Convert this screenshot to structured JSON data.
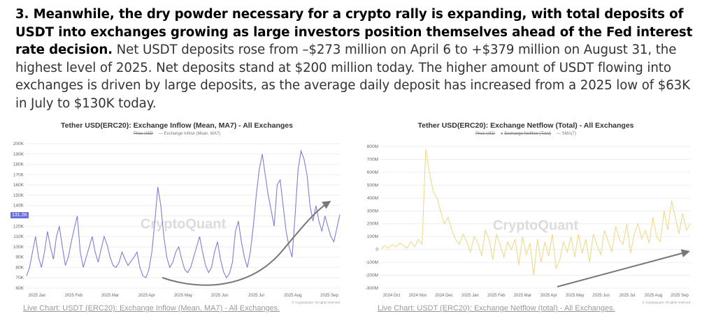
{
  "paragraph": {
    "bold": "3. Meanwhile, the dry powder necessary for a crypto rally is expanding, with total deposits of USDT into exchanges growing as large investors position themselves ahead of the Fed interest rate decision.",
    "body": " Net USDT deposits rose from –$273 million on April 6 to +$379 million on August 31, the highest level of 2025. Net deposits stand at $200 million today. The higher amount of USDT flowing into exchanges is driven by large deposits, as the average daily deposit has increased from a 2025 low of $63K in July to $130K today."
  },
  "chart_left": {
    "title": "Tether USD(ERC20): Exchange Inflow (Mean, MA7) - All Exchanges",
    "legend": [
      "Price USD",
      "Exchange Inflow (Mean, MA7)"
    ],
    "watermark": "CryptoQuant",
    "badge": "131.2K",
    "copyright": "© CryptoQuant. All rights reserved",
    "link": "Live Chart: USDT (ERC20): Exchange Inflow (Mean, MA7) - All Exchanges.",
    "line_color": "#7b7fd6"
  },
  "chart_right": {
    "title": "Tether USD(ERC20): Exchange Netflow (Total) - All Exchanges",
    "legend": [
      "Price USD",
      "Exchange Netflow (Total)",
      "SMA(7)"
    ],
    "watermark": "CryptoQuant",
    "copyright": "© CryptoQuant. All rights reserved",
    "link": "Live Chart: USDT (ERC20): Exchange Netflow (total) - All Exchanges.",
    "line_color": "#f1d98a"
  },
  "chart_data": [
    {
      "type": "line",
      "title": "Tether USD(ERC20): Exchange Inflow (Mean, MA7) - All Exchanges",
      "ylim": [
        60000,
        200000
      ],
      "y_ticks": [
        "200K",
        "190K",
        "180K",
        "170K",
        "160K",
        "150K",
        "140K",
        "130K",
        "120K",
        "110K",
        "100K",
        "90K",
        "80K",
        "70K",
        "60K"
      ],
      "x_ticks": [
        "2025 Jan",
        "2025 Feb",
        "2025 Mar",
        "2025 Apr",
        "2025 May",
        "2025 Jun",
        "2025 Jul",
        "2025 Aug",
        "2025 Sep"
      ],
      "series": [
        {
          "name": "Exchange Inflow (Mean, MA7)",
          "values": [
            72000,
            80000,
            95000,
            110000,
            90000,
            80000,
            95000,
            115000,
            100000,
            88000,
            110000,
            120000,
            100000,
            82000,
            90000,
            105000,
            118000,
            130000,
            95000,
            80000,
            90000,
            100000,
            110000,
            95000,
            85000,
            98000,
            110000,
            102000,
            90000,
            82000,
            80000,
            85000,
            95000,
            88000,
            82000,
            86000,
            90000,
            95000,
            80000,
            72000,
            70000,
            78000,
            95000,
            125000,
            158000,
            140000,
            110000,
            90000,
            80000,
            85000,
            95000,
            100000,
            88000,
            78000,
            75000,
            80000,
            90000,
            100000,
            110000,
            95000,
            82000,
            75000,
            80000,
            95000,
            105000,
            88000,
            76000,
            70000,
            74000,
            85000,
            115000,
            125000,
            105000,
            90000,
            80000,
            95000,
            120000,
            150000,
            175000,
            190000,
            170000,
            150000,
            135000,
            120000,
            160000,
            165000,
            140000,
            115000,
            100000,
            90000,
            130000,
            175000,
            193000,
            185000,
            170000,
            140000,
            125000,
            140000,
            125000,
            115000,
            130000,
            120000,
            110000,
            105000,
            118000,
            131200
          ]
        }
      ]
    },
    {
      "type": "line",
      "title": "Tether USD(ERC20): Exchange Netflow (Total) - All Exchanges",
      "ylim": [
        -300,
        800
      ],
      "y_ticks": [
        "800M",
        "700M",
        "600M",
        "500M",
        "400M",
        "300M",
        "200M",
        "100M",
        "0",
        "-100M",
        "-200M",
        "-300M"
      ],
      "x_ticks": [
        "2024 Oct",
        "2024 Nov",
        "2024 Dec",
        "2025 Jan",
        "2025 Feb",
        "2025 Mar",
        "2025 Apr",
        "2025 May",
        "2025 Jun",
        "2025 Jul",
        "2025 Aug",
        "2025 Sep"
      ],
      "series": [
        {
          "name": "Exchange Netflow (Total)",
          "values": [
            0,
            30,
            10,
            40,
            20,
            50,
            30,
            10,
            60,
            20,
            80,
            40,
            780,
            600,
            450,
            400,
            300,
            200,
            250,
            150,
            80,
            40,
            120,
            60,
            -20,
            100,
            50,
            -50,
            150,
            80,
            -80,
            120,
            30,
            -60,
            60,
            0,
            80,
            -120,
            100,
            -40,
            50,
            -200,
            80,
            -100,
            60,
            -50,
            120,
            -150,
            -80,
            60,
            -20,
            100,
            -60,
            120,
            -30,
            80,
            -100,
            120,
            30,
            -40,
            150,
            60,
            -20,
            180,
            80,
            40,
            200,
            -30,
            120,
            200,
            80,
            150,
            50,
            250,
            100,
            60,
            300,
            150,
            380,
            250,
            120,
            280,
            150,
            200
          ]
        }
      ]
    }
  ]
}
